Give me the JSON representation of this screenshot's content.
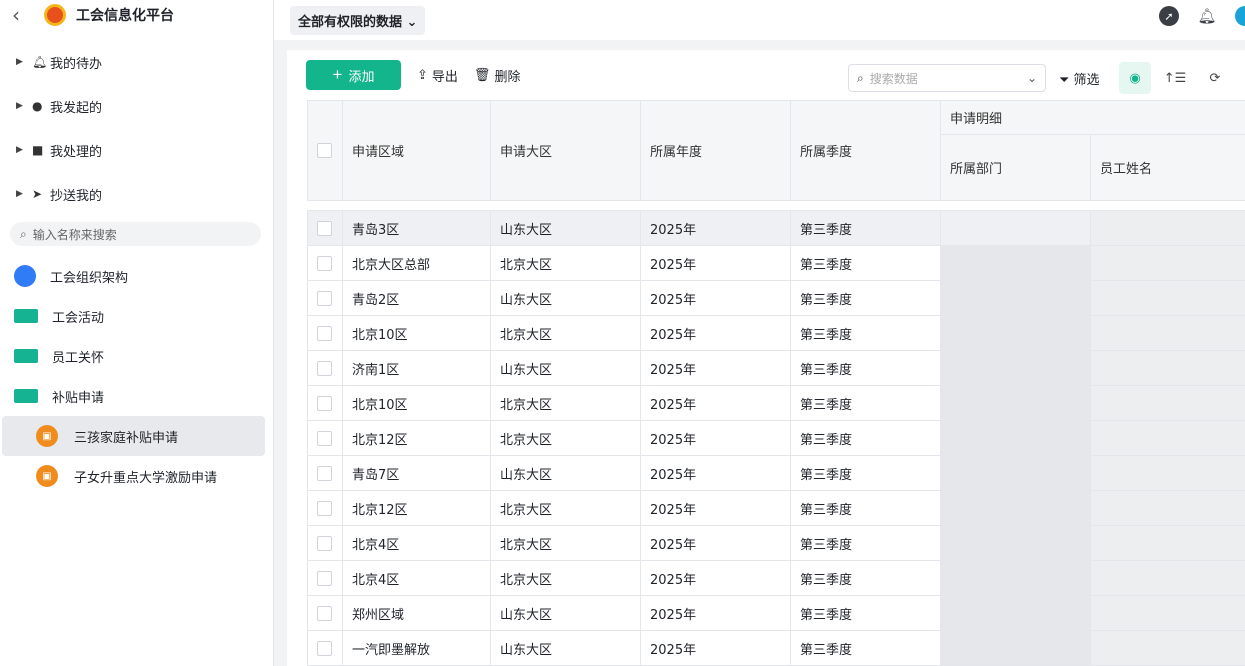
{
  "app": {
    "title": "工会信息化平台"
  },
  "sidebar": {
    "nav": [
      {
        "label": "我的待办",
        "icon": "bell-icon"
      },
      {
        "label": "我发起的",
        "icon": "play-circle-icon"
      },
      {
        "label": "我处理的",
        "icon": "check-box-icon"
      },
      {
        "label": "抄送我的",
        "icon": "send-icon"
      }
    ],
    "search_placeholder": "输入名称来搜索",
    "items": [
      {
        "label": "工会组织架构",
        "icon": "doc-icon"
      },
      {
        "label": "工会活动",
        "icon": "folder-icon"
      },
      {
        "label": "员工关怀",
        "icon": "folder-icon"
      },
      {
        "label": "补贴申请",
        "icon": "folder-open-icon"
      }
    ],
    "subitems": [
      {
        "label": "三孩家庭补贴申请",
        "active": true
      },
      {
        "label": "子女升重点大学激励申请",
        "active": false
      }
    ]
  },
  "header": {
    "view": "全部有权限的数据"
  },
  "toolbar": {
    "add": "添加",
    "export": "导出",
    "delete": "删除",
    "search_placeholder": "搜索数据",
    "filter": "筛选"
  },
  "colors": {
    "accent": "#13b58c",
    "logo": "#e8501c"
  },
  "table": {
    "headers": [
      "申请区域",
      "申请大区",
      "所属年度",
      "所属季度"
    ],
    "group_header": "申请明细",
    "sub_headers": [
      "所属部门",
      "员工姓名"
    ],
    "rows": [
      [
        "青岛3区",
        "山东大区",
        "2025年",
        "第三季度"
      ],
      [
        "北京大区总部",
        "北京大区",
        "2025年",
        "第三季度"
      ],
      [
        "青岛2区",
        "山东大区",
        "2025年",
        "第三季度"
      ],
      [
        "北京10区",
        "北京大区",
        "2025年",
        "第三季度"
      ],
      [
        "济南1区",
        "山东大区",
        "2025年",
        "第三季度"
      ],
      [
        "北京10区",
        "北京大区",
        "2025年",
        "第三季度"
      ],
      [
        "北京12区",
        "北京大区",
        "2025年",
        "第三季度"
      ],
      [
        "青岛7区",
        "山东大区",
        "2025年",
        "第三季度"
      ],
      [
        "北京12区",
        "北京大区",
        "2025年",
        "第三季度"
      ],
      [
        "北京4区",
        "北京大区",
        "2025年",
        "第三季度"
      ],
      [
        "北京4区",
        "北京大区",
        "2025年",
        "第三季度"
      ],
      [
        "郑州区域",
        "山东大区",
        "2025年",
        "第三季度"
      ],
      [
        "一汽即墨解放",
        "山东大区",
        "2025年",
        "第三季度"
      ]
    ]
  }
}
